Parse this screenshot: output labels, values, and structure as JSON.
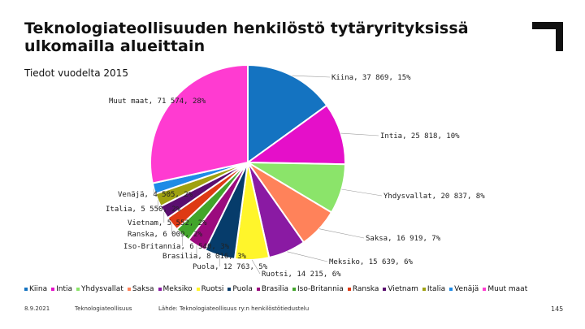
{
  "header": {
    "title": "Teknologiateollisuuden henkilöstö tytäryrityksissä ulkomailla alueittain",
    "subtitle": "Tiedot vuodelta 2015"
  },
  "footer": {
    "date": "8.9.2021",
    "org": "Teknologiateollisuus",
    "source": "Lähde: Teknologiateollisuus ry:n henkilöstötiedustelu",
    "page": "145"
  },
  "chart_data": {
    "type": "pie",
    "title": "Teknologiateollisuuden henkilöstö tytäryrityksissä ulkomailla alueittain",
    "subtitle": "Tiedot vuodelta 2015",
    "legend_position": "bottom",
    "slices": [
      {
        "name": "Kiina",
        "value": 37869,
        "percent": 15,
        "label": "Kiina, 37 869, 15%",
        "color": "#1473C1"
      },
      {
        "name": "Intia",
        "value": 25818,
        "percent": 10,
        "label": "Intia, 25 818, 10%",
        "color": "#E50FC9"
      },
      {
        "name": "Yhdysvallat",
        "value": 20837,
        "percent": 8,
        "label": "Yhdysvallat, 20 837, 8%",
        "color": "#8BE46A"
      },
      {
        "name": "Saksa",
        "value": 16919,
        "percent": 7,
        "label": "Saksa, 16 919, 7%",
        "color": "#FF825A"
      },
      {
        "name": "Meksiko",
        "value": 15639,
        "percent": 6,
        "label": "Meksiko, 15 639, 6%",
        "color": "#8A1AA3"
      },
      {
        "name": "Ruotsi",
        "value": 14215,
        "percent": 6,
        "label": "Ruotsi, 14 215, 6%",
        "color": "#FFF52B"
      },
      {
        "name": "Puola",
        "value": 12763,
        "percent": 5,
        "label": "Puola, 12 763, 5%",
        "color": "#063C6B"
      },
      {
        "name": "Brasilia",
        "value": 8016,
        "percent": 3,
        "label": "Brasilia, 8 016, 3%",
        "color": "#9B0B7E"
      },
      {
        "name": "Iso-Britannia",
        "value": 6540,
        "percent": 3,
        "label": "Iso-Britannia, 6 540, 3%",
        "color": "#42A52B"
      },
      {
        "name": "Ranska",
        "value": 6009,
        "percent": 2,
        "label": "Ranska, 6 009, 2%",
        "color": "#DE3A14"
      },
      {
        "name": "Vietnam",
        "value": 5552,
        "percent": 2,
        "label": "Vietnam, 5 552, 2%",
        "color": "#5A0E6F"
      },
      {
        "name": "Italia",
        "value": 5550,
        "percent": 2,
        "label": "Italia, 5 550, 2%",
        "color": "#9FA110"
      },
      {
        "name": "Venäjä",
        "value": 4505,
        "percent": 2,
        "label": "Venäjä, 4 505, 2%",
        "color": "#1E8BE6"
      },
      {
        "name": "Muut maat",
        "value": 71574,
        "percent": 28,
        "label": "Muut maat, 71 574, 28%",
        "color": "#FF3BD1"
      }
    ]
  }
}
